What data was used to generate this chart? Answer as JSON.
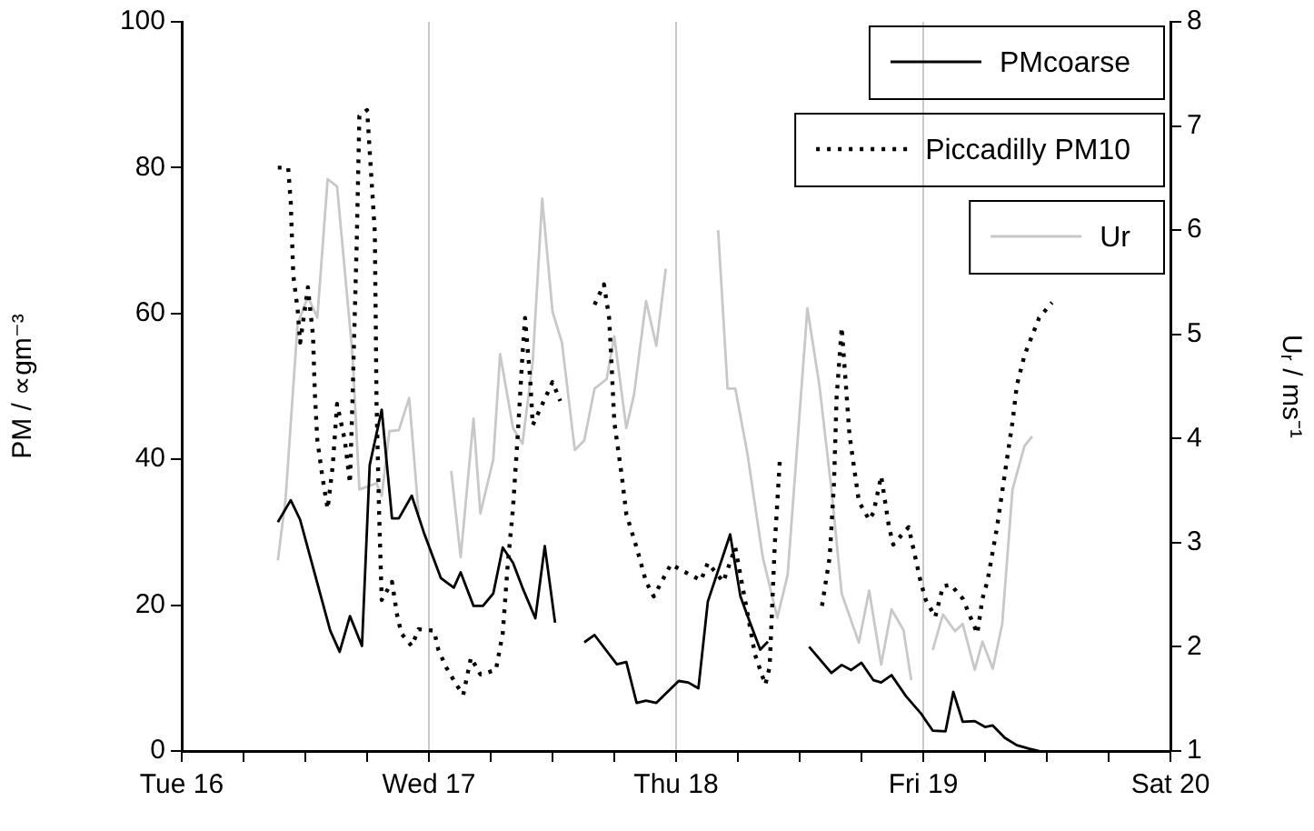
{
  "chart_data": {
    "type": "line",
    "xlim": [
      "--03-16",
      "--03-20"
    ],
    "xticks": [
      {
        "value": "--03-16",
        "label": "Tue 16"
      },
      {
        "value": "--03-16T06:00",
        "label": null
      },
      {
        "value": "--03-16T12:00",
        "label": null
      },
      {
        "value": "--03-16T18:00",
        "label": null
      },
      {
        "value": "--03-17",
        "label": "Wed 17"
      },
      {
        "value": "--03-17T06:00",
        "label": null
      },
      {
        "value": "--03-17T12:00",
        "label": null
      },
      {
        "value": "--03-17T18:00",
        "label": null
      },
      {
        "value": "--03-18",
        "label": "Thu 18"
      },
      {
        "value": "--03-18T06:00",
        "label": null
      },
      {
        "value": "--03-18T12:00",
        "label": null
      },
      {
        "value": "--03-18T18:00",
        "label": null
      },
      {
        "value": "--03-19",
        "label": "Fri 19"
      },
      {
        "value": "--03-19T06:00",
        "label": null
      },
      {
        "value": "--03-19T12:00",
        "label": null
      },
      {
        "value": "--03-19T18:00",
        "label": null
      },
      {
        "value": "--03-20",
        "label": "Sat 20"
      }
    ],
    "ylabel": "PM / ∝gm⁻³",
    "ylim": [
      0,
      100
    ],
    "yticks": [
      0,
      20,
      40,
      60,
      80,
      100
    ],
    "y2label": "Uᵣ / ms⁻¹",
    "y2lim": [
      1,
      8
    ],
    "y2ticks": [
      1,
      2,
      3,
      4,
      5,
      6,
      7,
      8
    ],
    "grid": "x",
    "legend": "top right",
    "marker": "none",
    "series": [
      {
        "name": "PMcoarse",
        "color": "#000000",
        "line_style": "solid",
        "x": [
          "--03-16T09:20",
          "--03-16T10:35",
          "--03-16T11:30",
          "--03-16T14:25",
          "--03-16T15:20",
          "--03-16T16:20",
          "--03-16T17:30",
          "--03-16T18:15",
          "--03-16T19:25",
          "--03-16T20:25",
          "--03-16T21:05",
          "--03-16T22:20",
          "--03-16T23:30",
          "--03-17T01:10",
          "--03-17T02:25",
          "--03-17T03:05",
          "--03-17T04:20",
          "--03-17T05:15",
          "--03-17T06:15",
          "--03-17T07:10",
          "--03-17T08:10",
          "--03-17T09:05",
          "--03-17T10:20",
          "--03-17T11:15",
          "--03-17T12:15",
          "--03-17T13:40",
          "--03-17T15:05",
          "--03-17T16:05",
          "--03-17T18:15",
          "--03-17T19:10",
          "--03-17T20:10",
          "--03-17T21:05",
          "--03-17T22:05",
          "--03-18T00:15",
          "--03-18T01:10",
          "--03-18T02:10",
          "--03-18T03:05",
          "--03-18T05:15",
          "--03-18T06:15",
          "--03-18T06:55",
          "--03-18T08:10",
          "--03-18T08:55",
          "--03-18T10:50",
          "--03-18T12:55",
          "--03-18T15:05",
          "--03-18T16:05",
          "--03-18T17:00",
          "--03-18T18:00",
          "--03-18T19:10",
          "--03-18T19:55",
          "--03-18T20:55",
          "--03-18T22:20",
          "--03-18T23:45",
          "--03-19T00:55",
          "--03-19T02:10",
          "--03-19T02:55",
          "--03-19T03:50",
          "--03-19T05:00",
          "--03-19T06:00",
          "--03-19T06:45",
          "--03-19T07:55",
          "--03-19T09:05",
          "--03-19T10:20",
          "--03-19T11:15"
        ],
        "values": [
          31.4,
          34.4,
          31.7,
          16.5,
          13.6,
          18.5,
          14.4,
          39.2,
          46.8,
          31.9,
          31.9,
          35,
          30,
          23.7,
          22.4,
          24.5,
          19.9,
          19.9,
          21.6,
          27.9,
          25.8,
          22.4,
          18.2,
          28.1,
          17.6,
          null,
          14.9,
          15.9,
          11.9,
          12.2,
          6.6,
          6.9,
          6.6,
          9.6,
          9.4,
          8.6,
          20.5,
          29.7,
          21.2,
          18.6,
          13.9,
          15,
          null,
          14.3,
          10.7,
          11.8,
          11.1,
          12.1,
          9.7,
          9.4,
          10.4,
          7.5,
          5.2,
          2.8,
          2.7,
          8.1,
          4,
          4.1,
          3.3,
          3.5,
          1.8,
          0.8,
          0.3,
          0
        ]
      },
      {
        "name": "Piccadilly PM10",
        "color": "#000000",
        "line_style": "dotted",
        "x": [
          "--03-16T09:20",
          "--03-16T10:20",
          "--03-16T10:35",
          "--03-16T10:50",
          "--03-16T11:15",
          "--03-16T11:30",
          "--03-16T12:15",
          "--03-16T12:45",
          "--03-16T12:55",
          "--03-16T13:10",
          "--03-16T13:40",
          "--03-16T14:10",
          "--03-16T14:40",
          "--03-16T15:05",
          "--03-16T15:50",
          "--03-16T16:20",
          "--03-16T16:35",
          "--03-16T17:00",
          "--03-16T17:15",
          "--03-16T18:00",
          "--03-16T18:45",
          "--03-16T18:55",
          "--03-16T19:10",
          "--03-16T19:25",
          "--03-16T20:25",
          "--03-16T20:55",
          "--03-16T21:20",
          "--03-16T22:20",
          "--03-16T23:00",
          "--03-17T00:30",
          "--03-17T00:55",
          "--03-17T01:40",
          "--03-17T02:40",
          "--03-17T03:20",
          "--03-17T04:05",
          "--03-17T05:00",
          "--03-17T06:30",
          "--03-17T07:10",
          "--03-17T07:40",
          "--03-17T08:10",
          "--03-17T08:40",
          "--03-17T09:05",
          "--03-17T09:20",
          "--03-17T09:50",
          "--03-17T10:05",
          "--03-17T12:00",
          "--03-17T12:45",
          "--03-17T14:25",
          "--03-17T16:05",
          "--03-17T17:00",
          "--03-17T17:30",
          "--03-17T17:45",
          "--03-17T18:00",
          "--03-17T18:45",
          "--03-17T19:10",
          "--03-17T20:10",
          "--03-17T21:05",
          "--03-17T21:50",
          "--03-17T22:35",
          "--03-17T23:30",
          "--03-18T00:55",
          "--03-18T02:25",
          "--03-18T03:05",
          "--03-18T04:35",
          "--03-18T05:45",
          "--03-18T06:45",
          "--03-18T07:40",
          "--03-18T08:40",
          "--03-18T09:05",
          "--03-18T09:35",
          "--03-18T10:05",
          "--03-18T12:00",
          "--03-18T14:10",
          "--03-18T14:55",
          "--03-18T15:20",
          "--03-18T15:35",
          "--03-18T16:05",
          "--03-18T16:50",
          "--03-18T17:45",
          "--03-18T18:45",
          "--03-18T19:10",
          "--03-18T19:55",
          "--03-18T20:40",
          "--03-18T21:05",
          "--03-18T22:35",
          "--03-18T23:45",
          "--03-19T00:15",
          "--03-19T01:10",
          "--03-19T01:55",
          "--03-19T02:40",
          "--03-19T03:50",
          "--03-19T05:15",
          "--03-19T05:45",
          "--03-19T06:15",
          "--03-19T07:10",
          "--03-19T07:55",
          "--03-19T08:40",
          "--03-19T09:05",
          "--03-19T09:50",
          "--03-19T11:15",
          "--03-19T12:30"
        ],
        "values": [
          80,
          80,
          75.3,
          65.2,
          60.6,
          56,
          63.6,
          56.9,
          49.3,
          42.6,
          37.5,
          33.2,
          39.2,
          47.6,
          42.6,
          36.7,
          48.4,
          70.3,
          87.1,
          87.9,
          71.1,
          47.6,
          32.5,
          20.7,
          23.2,
          18.6,
          16.1,
          14.4,
          16.7,
          16.5,
          13.9,
          11.5,
          9.1,
          7.7,
          12.8,
          10.5,
          11.1,
          16.1,
          25.8,
          33.3,
          44.3,
          54.3,
          59.4,
          51,
          44.7,
          50.6,
          48,
          null,
          61.2,
          64,
          59.4,
          52.6,
          45.1,
          37.5,
          32.5,
          27.9,
          23.2,
          21.2,
          23.2,
          25.6,
          24.5,
          23.4,
          25.8,
          23.2,
          27.9,
          20.3,
          13.2,
          9.1,
          11.5,
          28.3,
          40.1,
          null,
          19.9,
          26.6,
          36.7,
          48.4,
          58.1,
          43.4,
          34.2,
          31.7,
          32.7,
          37.7,
          30.8,
          28.3,
          30.7,
          23.2,
          20.7,
          18.4,
          22.6,
          22.8,
          20.9,
          16.1,
          20.9,
          23.4,
          30.7,
          38,
          45.1,
          50.1,
          54.3,
          59.4,
          61.5
        ]
      },
      {
        "name": "Ur",
        "color": "#c8c8c8",
        "line_style": "solid",
        "axis": "y2",
        "x": [
          "--03-16T09:20",
          "--03-16T10:05",
          "--03-16T11:15",
          "--03-16T12:15",
          "--03-16T13:10",
          "--03-16T14:10",
          "--03-16T15:05",
          "--03-16T16:35",
          "--03-16T17:15",
          "--03-16T18:55",
          "--03-16T19:25",
          "--03-16T20:10",
          "--03-16T21:05",
          "--03-16T22:05",
          "--03-16T23:00",
          "--03-17T00:45",
          "--03-17T02:10",
          "--03-17T03:05",
          "--03-17T04:20",
          "--03-17T05:00",
          "--03-17T06:15",
          "--03-17T06:55",
          "--03-17T08:10",
          "--03-17T09:05",
          "--03-17T10:05",
          "--03-17T11:00",
          "--03-17T12:00",
          "--03-17T12:55",
          "--03-17T14:10",
          "--03-17T15:05",
          "--03-17T16:05",
          "--03-17T17:15",
          "--03-17T18:00",
          "--03-17T19:10",
          "--03-17T19:55",
          "--03-17T21:05",
          "--03-17T22:05",
          "--03-17T23:00",
          "--03-18T01:55",
          "--03-18T04:05",
          "--03-18T05:00",
          "--03-18T05:45",
          "--03-18T06:55",
          "--03-18T08:25",
          "--03-18T09:50",
          "--03-18T10:50",
          "--03-18T12:45",
          "--03-18T13:55",
          "--03-18T15:05",
          "--03-18T16:05",
          "--03-18T17:45",
          "--03-18T18:45",
          "--03-18T19:55",
          "--03-18T20:55",
          "--03-18T22:05",
          "--03-18T22:50",
          "--03-19T00:00",
          "--03-19T00:55",
          "--03-19T01:55",
          "--03-19T03:05",
          "--03-19T03:50",
          "--03-19T05:00",
          "--03-19T05:45",
          "--03-19T06:45",
          "--03-19T07:40",
          "--03-19T08:40",
          "--03-19T09:50",
          "--03-19T10:35"
        ],
        "values": [
          2.83,
          3.42,
          5.1,
          5.36,
          5.16,
          6.49,
          6.42,
          4.8,
          3.51,
          3.57,
          3.45,
          4.07,
          4.08,
          4.39,
          3.28,
          null,
          3.69,
          2.86,
          4.19,
          3.28,
          3.8,
          4.81,
          4.1,
          3.95,
          4.74,
          6.3,
          5.22,
          4.92,
          3.89,
          3.98,
          4.48,
          4.57,
          4.98,
          4.1,
          4.42,
          5.32,
          4.89,
          5.63,
          null,
          6.0,
          4.48,
          4.48,
          3.86,
          2.86,
          2.28,
          2.69,
          5.25,
          4.51,
          3.51,
          2.51,
          2.04,
          2.54,
          1.83,
          2.36,
          2.16,
          1.68,
          null,
          1.97,
          2.31,
          2.15,
          2.22,
          1.78,
          2.05,
          1.79,
          2.22,
          3.51,
          3.93,
          4.02
        ]
      }
    ]
  }
}
